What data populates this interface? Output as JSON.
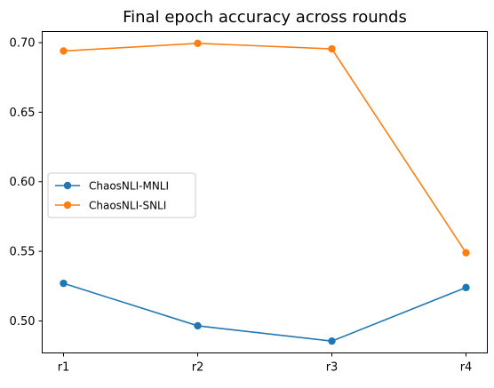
{
  "chart_data": {
    "type": "line",
    "title": "Final epoch accuracy across rounds",
    "xlabel": "",
    "ylabel": "",
    "categories": [
      "r1",
      "r2",
      "r3",
      "r4"
    ],
    "ylim": [
      0.477,
      0.708
    ],
    "yticks": [
      0.5,
      0.55,
      0.6,
      0.65,
      0.7
    ],
    "ytick_labels": [
      "0.50",
      "0.55",
      "0.60",
      "0.65",
      "0.70"
    ],
    "grid": false,
    "legend_position": "center-left",
    "series": [
      {
        "name": "ChaosNLI-MNLI",
        "color": "#1f77b4",
        "values": [
          0.527,
          0.4965,
          0.4855,
          0.524
        ]
      },
      {
        "name": "ChaosNLI-SNLI",
        "color": "#ff7f0e",
        "values": [
          0.694,
          0.6995,
          0.6955,
          0.549
        ]
      }
    ]
  }
}
